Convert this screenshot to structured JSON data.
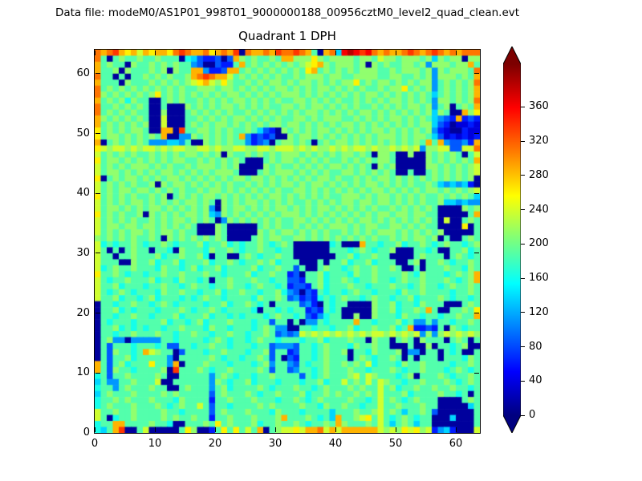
{
  "header": {
    "data_file_label": "Data file: modeM0/AS1P01_998T01_9000000188_00956cztM0_level2_quad_clean.evt"
  },
  "chart_data": {
    "type": "heatmap",
    "title": "Quadrant 1 DPH",
    "xlabel": "",
    "ylabel": "",
    "x_range": [
      0,
      64
    ],
    "y_range": [
      0,
      64
    ],
    "x_ticks": [
      0,
      10,
      20,
      30,
      40,
      50,
      60
    ],
    "y_ticks": [
      0,
      10,
      20,
      30,
      40,
      50,
      60
    ],
    "grid": false,
    "colormap": "jet",
    "colorbar": {
      "position": "right",
      "extend": "both",
      "ticks": [
        0,
        40,
        80,
        120,
        160,
        200,
        240,
        280,
        320,
        360
      ],
      "vmin": 0,
      "vmax": 410
    },
    "value_encoding": "Each character of a grid row is a hex digit 0-f; cell value = digit*25+12 (DPH counts, approx). Rows listed top (y=63) to bottom (y=0), 64 chars left (x=0) to right (x=63).",
    "grid_rows_top_to_bottom": [
      "cbcdbab9babbacdcbbcabcbd0cbbcbdccdcb70bc5efedecbcbbcdcbcdcbcbccc",
      "c7078778778777065322303b8787787bb888a87888878879887888785878808 8",
      "b787708778787877430032 27b78787878789ab878887808787788784888788b",
      "b778087778780877bb4223bb78787878787ab787878788877878887 84878887c",
      "c770707787878778bcdcbb97878787877878887887788887788778784888787b",
      "b777087778787878 9ab98a877878788787887878788a787887878788 4787878c",
      "c787878787878787788878878787878878787887878787787 88a78784787878b",
      "c878787878a787878787878878787878887878787878788787878787 5787878b",
      "b787868770078787787878788787878778878787877878787887878 74887878c",
      "c778787870070008787878878787877887878878787877878787887 84780787b",
      "c787878770080007878787877878787878788787878788787878787858700b8a",
      "b878787870090007787878788787878778878788877878787887878 75432b232",
      "b787878780090007878788787878788788787878788787878787878 853201121",
      "a7878788700bb0d778878787787532087878788787878788787878 7842100211",
      "a7887878787b004487878787b423230087887878787878788878788753121212",
      "b07878787444554700878787742340788787078788787878787878 7b7b43342b",
      "a98998989989899889989889988998999898988989899898898989488993399c",
      "9787878778787878878780877878787888787878788787088700800878787079",
      "a788787878787887787878787000787887878787787878788700000 87878787b",
      "9787878887878778788878780000878778787878878787087800000887878789",
      "9788787878788787878788870007878887878787788787878700700787878789",
      "a078788787878878787878788788787878787887877878788787878 787878780",
      "9787878778087887878787877878787887878878787878878787877875454520",
      "9787887887878787787887878787878778878787878787887878787887878789",
      "a787878778780787878878787878788787878787788878788787878778787875",
      "9787878878787878878708787887878787787878788788788787878778554544",
      "9788787878878787878408788787878878787887878787877878787 870000878",
      "a78787780878787887854878787878788878787878787878878878877000007b",
      "9787878778787887878704878787878778878787878788787878787870900787",
      "9788788788787878700087000007878778787878887878877887878770000a07",
      "9787878878788787700087000008787887878787787878788878787878000007",
      "8787878778708787878787000078788778878787878787877878788780700787",
      "9676778767787677786778676778767870000006 7000b7767786778767877678",
      "9707078770776087776877876778776770000007776787677800077670077867",
      "9770778777867787786077007876778770000000778677877000078777078767",
      "9777008778677867778677876778786777000707786778677700780778767787",
      "9678778777687767867786777786778773700787767877877870070777877687",
      "a77876776778778777877677786778772307786777687787777876877767878b",
      "9767787778677687767077877787767733277867787677877678778 77787678b",
      "9778677767787767877677877678776723327867778776777877678776787787",
      "9767876777687787767786778776778643032767767877677768778777767787",
      "9778677678677767678776777768778734232676787767877677867778767767",
      "0776778776787677776778677876707777342076770000877867768777000787",
      "0778676777677787677876777760776767723276700000877867787b7007787a",
      "0776778776777867778677676777678776732467700800877768776 77677877b",
      "0767776777786776786777877767737707044767777b77677786744747767787",
      "0778676767767787776877677767874400776776778677877867b22327087677",
      "0776778777877677877677877677873434989898989898998989894848989898",
      "0784404444477677776787677678776777677867778770877078708777078707",
      "0737776777673377677877677767734443776787776877877000700807767800",
      "07387767b987703777677877767783772377678778077687778044077076 7007",
      "0737786777774077777876776778737032776787770787677870707770777687",
      "b73786777a774b0777877767776784774376778778787967776877877776 7787",
      "b738776777780d7778767787777873773477678777877677787677877767876 7",
      "6737787777870077777478767767787777376787778979877767807778767787",
      "5744778777900777777487677867776777677867797879798776778777876787",
      "6774787778770078777478677778767778776787778787797867787787787767",
      "5787778777787877777378777876778777867787877878797778677778776707",
      "6778787778777687777277877787776778767877778776797876787770000787",
      "6787778777876787797377677778787777877687787767797787778770000057",
      "9778778777787767777378777877768777677775777877897875778730000007",
      "9706778777787877877277877787778b77787675b7789a797678767700050007",
      "677bb777787760077787a78777867787787677 87b877787975787577000 00007",
      "657bd0079000007a80027a7a797b07899a9bbc9b9bbbbbb9898a9a8924520009"
    ]
  },
  "x_axis": {
    "tick_labels": [
      "0",
      "10",
      "20",
      "30",
      "40",
      "50",
      "60"
    ]
  },
  "y_axis": {
    "tick_labels": [
      "0",
      "10",
      "20",
      "30",
      "40",
      "50",
      "60"
    ]
  },
  "colorbar_labels": [
    "0",
    "40",
    "80",
    "120",
    "160",
    "200",
    "240",
    "280",
    "320",
    "360"
  ]
}
